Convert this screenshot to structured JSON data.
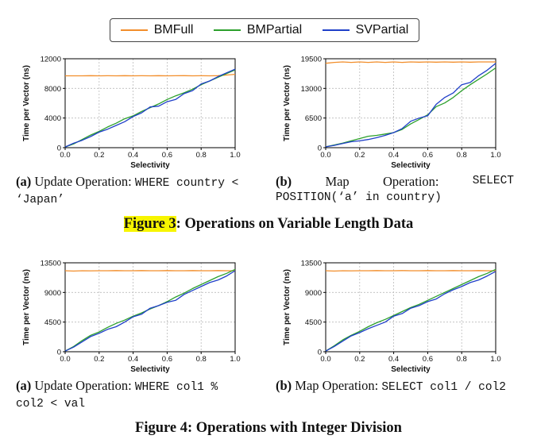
{
  "legend": [
    {
      "name": "BMFull",
      "color": "#f28e2b"
    },
    {
      "name": "BMPartial",
      "color": "#2ca02c"
    },
    {
      "name": "SVPartial",
      "color": "#1f3fc9"
    }
  ],
  "figure3": {
    "label": "Figure 3",
    "rest": ": Operations on Variable Length Data"
  },
  "figure4": {
    "title": "Figure 4: Operations with Integer Division"
  },
  "captions": {
    "c1": {
      "label": "(a)",
      "text": "Update Operation:",
      "code1": "WHERE country <",
      "code2": "‘Japan’"
    },
    "c2": {
      "label": "(b)",
      "w1": "Map",
      "w2": "Operation:",
      "code1": "SELECT",
      "code2": "POSITION(‘a’ in country)"
    },
    "c3": {
      "label": "(a)",
      "text": "Update Operation:",
      "code1": "WHERE col1 %",
      "code2": "col2 < val"
    },
    "c4": {
      "label": "(b)",
      "text": "Map Operation:",
      "code1": "SELECT col1 / col2"
    }
  },
  "chart_data": [
    {
      "type": "line",
      "xlabel": "Selectivity",
      "ylabel": "Time per Vector (ns)",
      "xlim": [
        0,
        1
      ],
      "ylim": [
        0,
        12000
      ],
      "xticks": [
        "0.0",
        "0.2",
        "0.4",
        "0.6",
        "0.8",
        "1.0"
      ],
      "yticks": [
        0,
        4000,
        8000,
        12000
      ],
      "ytick_labels": [
        "0",
        "4000",
        "8000",
        "12000"
      ],
      "grid": true,
      "x": [
        0,
        0.05,
        0.1,
        0.15,
        0.2,
        0.25,
        0.3,
        0.35,
        0.4,
        0.45,
        0.5,
        0.55,
        0.6,
        0.65,
        0.7,
        0.75,
        0.8,
        0.85,
        0.9,
        0.95,
        1.0
      ],
      "series": [
        {
          "name": "BMFull",
          "values": [
            9700,
            9700,
            9700,
            9720,
            9700,
            9710,
            9700,
            9720,
            9700,
            9710,
            9700,
            9720,
            9700,
            9710,
            9720,
            9700,
            9710,
            9700,
            9720,
            9800,
            9900
          ]
        },
        {
          "name": "BMPartial",
          "values": [
            100,
            500,
            1100,
            1700,
            2200,
            2800,
            3300,
            3900,
            4300,
            4900,
            5400,
            5900,
            6500,
            7000,
            7400,
            7900,
            8500,
            9000,
            9500,
            10000,
            10500
          ]
        },
        {
          "name": "SVPartial",
          "values": [
            100,
            600,
            1000,
            1500,
            2100,
            2500,
            3000,
            3500,
            4200,
            4700,
            5500,
            5600,
            6200,
            6500,
            7300,
            7700,
            8600,
            9000,
            9600,
            10100,
            10600
          ]
        }
      ]
    },
    {
      "type": "line",
      "xlabel": "Selectivity",
      "ylabel": "Time per Vector (ns)",
      "xlim": [
        0,
        1
      ],
      "ylim": [
        0,
        19500
      ],
      "xticks": [
        "0.0",
        "0.2",
        "0.4",
        "0.6",
        "0.8",
        "1.0"
      ],
      "yticks": [
        0,
        6500,
        13000,
        19500
      ],
      "ytick_labels": [
        "0",
        "6500",
        "13000",
        "19500"
      ],
      "grid": true,
      "x": [
        0,
        0.05,
        0.1,
        0.15,
        0.2,
        0.25,
        0.3,
        0.35,
        0.4,
        0.45,
        0.5,
        0.55,
        0.6,
        0.65,
        0.7,
        0.75,
        0.8,
        0.85,
        0.9,
        0.95,
        1.0
      ],
      "series": [
        {
          "name": "BMFull",
          "values": [
            18500,
            18700,
            18800,
            18700,
            18800,
            18700,
            18800,
            18700,
            18800,
            18700,
            18800,
            18750,
            18800,
            18750,
            18800,
            18750,
            18800,
            18750,
            18800,
            18800,
            18800
          ]
        },
        {
          "name": "BMPartial",
          "values": [
            200,
            600,
            1000,
            1500,
            2000,
            2500,
            2700,
            3000,
            3300,
            4000,
            5200,
            6200,
            7200,
            9000,
            9800,
            11000,
            12500,
            13800,
            15000,
            16200,
            17500
          ]
        },
        {
          "name": "SVPartial",
          "values": [
            200,
            500,
            900,
            1300,
            1500,
            1800,
            2200,
            2700,
            3300,
            4200,
            5800,
            6500,
            7000,
            9500,
            11000,
            12000,
            13800,
            14300,
            15800,
            17000,
            18500
          ]
        }
      ]
    },
    {
      "type": "line",
      "xlabel": "Selectivity",
      "ylabel": "Time per Vector (ns)",
      "xlim": [
        0,
        1
      ],
      "ylim": [
        0,
        13500
      ],
      "xticks": [
        "0.0",
        "0.2",
        "0.4",
        "0.6",
        "0.8",
        "1.0"
      ],
      "yticks": [
        0,
        4500,
        9000,
        13500
      ],
      "ytick_labels": [
        "0",
        "4500",
        "9000",
        "13500"
      ],
      "grid": true,
      "x": [
        0,
        0.05,
        0.1,
        0.15,
        0.2,
        0.25,
        0.3,
        0.35,
        0.4,
        0.45,
        0.5,
        0.55,
        0.6,
        0.65,
        0.7,
        0.75,
        0.8,
        0.85,
        0.9,
        0.95,
        1.0
      ],
      "series": [
        {
          "name": "BMFull",
          "values": [
            12300,
            12250,
            12300,
            12280,
            12300,
            12300,
            12320,
            12300,
            12300,
            12320,
            12300,
            12300,
            12320,
            12300,
            12300,
            12320,
            12300,
            12300,
            12320,
            12300,
            12300
          ]
        },
        {
          "name": "BMPartial",
          "values": [
            100,
            800,
            1700,
            2500,
            3000,
            3700,
            4300,
            4800,
            5400,
            5900,
            6500,
            7000,
            7600,
            8300,
            8900,
            9600,
            10200,
            10800,
            11400,
            11900,
            12500
          ]
        },
        {
          "name": "SVPartial",
          "values": [
            100,
            700,
            1500,
            2300,
            2800,
            3400,
            3800,
            4500,
            5300,
            5700,
            6600,
            7000,
            7500,
            7800,
            8700,
            9300,
            9900,
            10500,
            10900,
            11500,
            12300
          ]
        }
      ]
    },
    {
      "type": "line",
      "xlabel": "Selectivity",
      "ylabel": "Time per Vector (ns)",
      "xlim": [
        0,
        1
      ],
      "ylim": [
        0,
        13500
      ],
      "xticks": [
        "0.0",
        "0.2",
        "0.4",
        "0.6",
        "0.8",
        "1.0"
      ],
      "yticks": [
        0,
        4500,
        9000,
        13500
      ],
      "ytick_labels": [
        "0",
        "4500",
        "9000",
        "13500"
      ],
      "grid": true,
      "x": [
        0,
        0.05,
        0.1,
        0.15,
        0.2,
        0.25,
        0.3,
        0.35,
        0.4,
        0.45,
        0.5,
        0.55,
        0.6,
        0.65,
        0.7,
        0.75,
        0.8,
        0.85,
        0.9,
        0.95,
        1.0
      ],
      "series": [
        {
          "name": "BMFull",
          "values": [
            12300,
            12250,
            12300,
            12280,
            12300,
            12300,
            12320,
            12300,
            12300,
            12320,
            12300,
            12300,
            12320,
            12300,
            12300,
            12320,
            12300,
            12300,
            12320,
            12300,
            12300
          ]
        },
        {
          "name": "BMPartial",
          "values": [
            100,
            900,
            1800,
            2500,
            3100,
            3800,
            4400,
            4900,
            5500,
            6100,
            6700,
            7200,
            7800,
            8400,
            9000,
            9600,
            10200,
            10800,
            11400,
            11900,
            12500
          ]
        },
        {
          "name": "SVPartial",
          "values": [
            100,
            800,
            1600,
            2400,
            2900,
            3500,
            4000,
            4500,
            5400,
            5800,
            6600,
            7000,
            7600,
            8000,
            8800,
            9400,
            9900,
            10500,
            10900,
            11500,
            12200
          ]
        }
      ]
    }
  ]
}
